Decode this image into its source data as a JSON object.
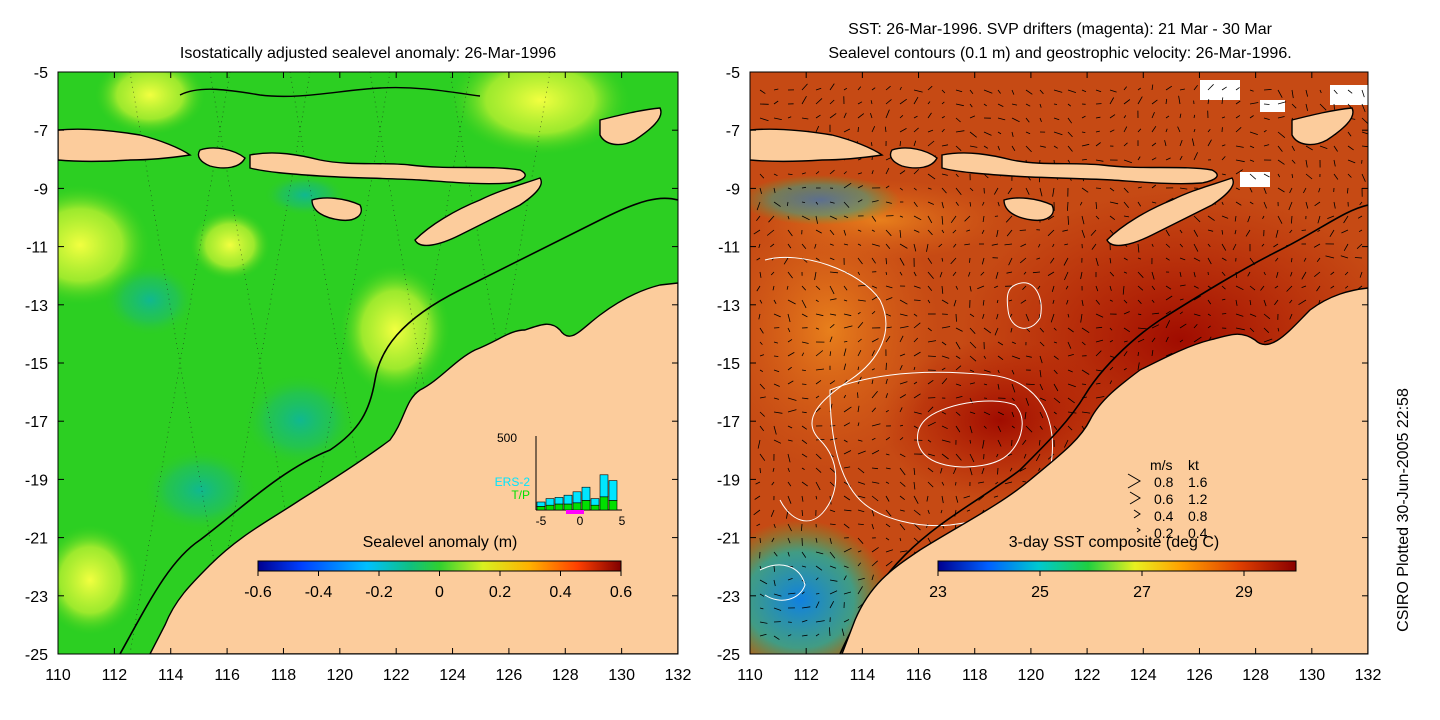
{
  "left_panel": {
    "title": "Isostatically adjusted sealevel anomaly: 26-Mar-1996",
    "colorbar": {
      "label": "Sealevel anomaly (m)",
      "ticks": [
        "-0.6",
        "-0.4",
        "-0.2",
        "0",
        "0.2",
        "0.4",
        "0.6"
      ]
    },
    "inset": {
      "y_max_label": "500",
      "x_ticks": [
        "-5",
        "0",
        "5"
      ],
      "series": [
        {
          "name": "ERS-2",
          "color": "#00e5ff"
        },
        {
          "name": "T/P",
          "color": "#00e000"
        }
      ]
    }
  },
  "right_panel": {
    "title_line1": "SST: 26-Mar-1996. SVP drifters (magenta): 21 Mar - 30 Mar",
    "title_line2": "Sealevel contours (0.1 m) and geostrophic velocity: 26-Mar-1996.",
    "colorbar": {
      "label": "3-day SST composite (deg C)",
      "ticks": [
        "23",
        "25",
        "27",
        "29"
      ]
    },
    "velocity_legend": {
      "header_ms": "m/s",
      "header_kt": "kt",
      "rows": [
        {
          "ms": "0.8",
          "kt": "1.6"
        },
        {
          "ms": "0.6",
          "kt": "1.2"
        },
        {
          "ms": "0.4",
          "kt": "0.8"
        },
        {
          "ms": "0.2",
          "kt": "0.4"
        }
      ]
    }
  },
  "axes": {
    "x_ticks": [
      "110",
      "112",
      "114",
      "116",
      "118",
      "120",
      "122",
      "124",
      "126",
      "128",
      "130",
      "132"
    ],
    "y_ticks": [
      "-5",
      "-7",
      "-9",
      "-11",
      "-13",
      "-15",
      "-17",
      "-19",
      "-21",
      "-23",
      "-25"
    ]
  },
  "footer": {
    "credit": "CSIRO Plotted 30-Jun-2005 22:58"
  },
  "colors": {
    "land": "#fccc9c",
    "sla_base": "#22cc22",
    "sst_base": "#c03a10"
  }
}
